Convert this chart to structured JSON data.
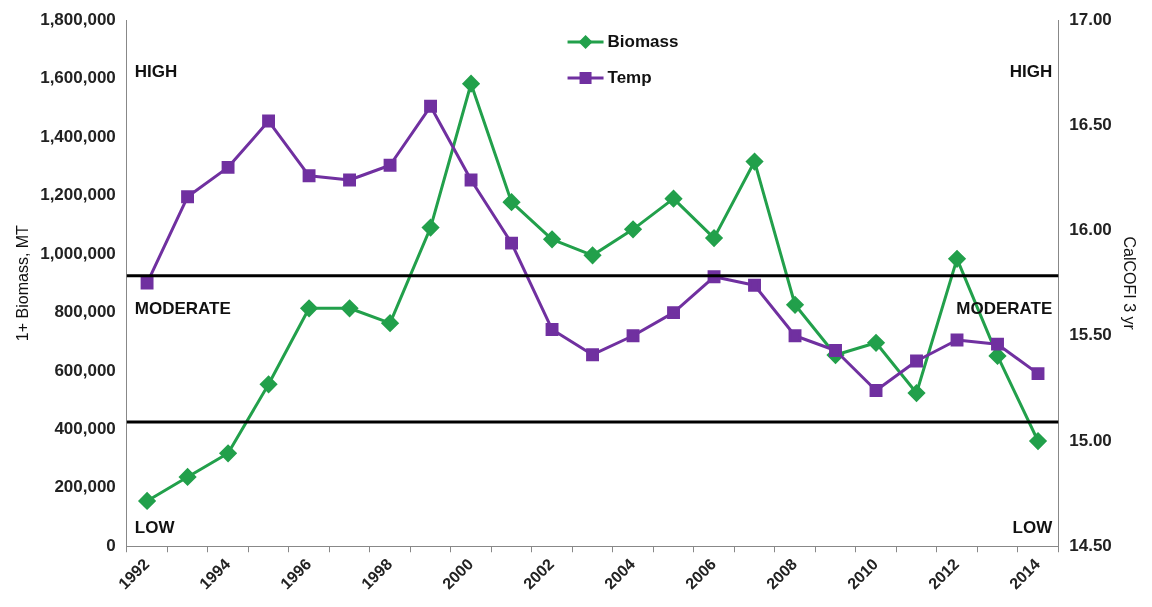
{
  "chart_data": {
    "type": "line",
    "ylabel": "1+ Biomass, MT",
    "y2label": "CalCOFI 3 yr",
    "categories": [
      "1992",
      null,
      "1994",
      null,
      "1996",
      null,
      "1998",
      null,
      "2000",
      null,
      "2002",
      null,
      "2004",
      null,
      "2006",
      null,
      "2008",
      null,
      "2010",
      null,
      "2012",
      null,
      "2014"
    ],
    "series": [
      {
        "name": "Biomass",
        "color": "#22a04b",
        "marker": "diamond",
        "values": [
          155000,
          237000,
          318000,
          554000,
          814000,
          814000,
          763000,
          1090000,
          1582000,
          1177000,
          1050000,
          995000,
          1084000,
          1189000,
          1054000,
          1316000,
          826000,
          654000,
          696000,
          524000,
          983000,
          651000,
          360000
        ]
      },
      {
        "name": "Temp",
        "color": "#7030a0",
        "marker": "square",
        "axis": "y2",
        "values": [
          15.75,
          16.16,
          16.3,
          16.52,
          16.26,
          16.24,
          16.31,
          16.59,
          16.24,
          15.94,
          15.53,
          15.41,
          15.5,
          15.61,
          15.78,
          15.74,
          15.5,
          15.43,
          15.24,
          15.38,
          15.48,
          15.46,
          15.32
        ]
      }
    ],
    "ylim": [
      0,
      1800000
    ],
    "yticks": [
      {
        "value": 0,
        "label": "0"
      },
      {
        "value": 200000,
        "label": "200,000"
      },
      {
        "value": 400000,
        "label": "400,000"
      },
      {
        "value": 600000,
        "label": "600,000"
      },
      {
        "value": 800000,
        "label": "800,000"
      },
      {
        "value": 1000000,
        "label": "1,000,000"
      },
      {
        "value": 1200000,
        "label": "1,200,000"
      },
      {
        "value": 1400000,
        "label": "1,400,000"
      },
      {
        "value": 1600000,
        "label": "1,600,000"
      },
      {
        "value": 1800000,
        "label": "1,800,000"
      }
    ],
    "y2lim": [
      14.5,
      17
    ],
    "y2ticks": [
      {
        "value": 14.5,
        "label": "14.50"
      },
      {
        "value": 15,
        "label": "15.00"
      },
      {
        "value": 15.5,
        "label": "15.50"
      },
      {
        "value": 16,
        "label": "16.00"
      },
      {
        "value": 16.5,
        "label": "16.50"
      },
      {
        "value": 17,
        "label": "17.00"
      }
    ],
    "ref_lines": [
      {
        "axis": "y",
        "value": 925000,
        "color": "#000000"
      },
      {
        "axis": "y",
        "value": 425000,
        "color": "#000000"
      }
    ],
    "annotations": [
      "HIGH",
      "MODERATE",
      "LOW",
      "HIGH",
      "MODERATE",
      "LOW"
    ],
    "legend": "top",
    "grid": false,
    "line_style": "solid"
  }
}
